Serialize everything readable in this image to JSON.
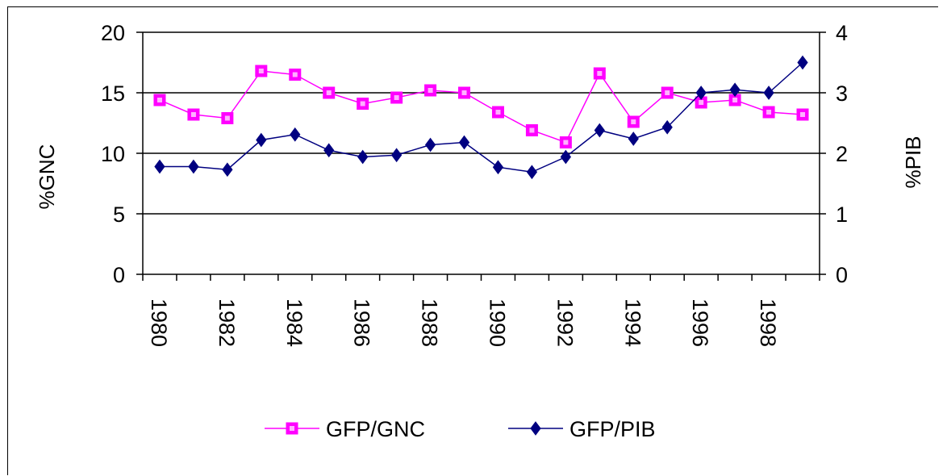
{
  "chart_data": {
    "type": "line",
    "x": [
      1980,
      1981,
      1982,
      1983,
      1984,
      1985,
      1986,
      1987,
      1988,
      1989,
      1990,
      1991,
      1992,
      1993,
      1994,
      1995,
      1996,
      1997,
      1998,
      1999
    ],
    "x_tick_labels": [
      "1980",
      "1982",
      "1984",
      "1986",
      "1988",
      "1990",
      "1992",
      "1994",
      "1996",
      "1998"
    ],
    "ylabel": "%GNC",
    "ylabel_right": "%PIB",
    "ylim": [
      0,
      20
    ],
    "ylim_right": [
      0,
      4
    ],
    "y_ticks": [
      "0",
      "5",
      "10",
      "15",
      "20"
    ],
    "y_ticks_right": [
      "0",
      "1",
      "2",
      "3",
      "4"
    ],
    "grid": true,
    "legend_position": "bottom",
    "series": [
      {
        "name": "GFP/GNC",
        "axis": "left",
        "color": "#ff00ff",
        "marker": "square",
        "values": [
          14.4,
          13.2,
          12.9,
          16.8,
          16.5,
          15.0,
          14.1,
          14.6,
          15.2,
          15.0,
          13.4,
          11.9,
          10.9,
          16.6,
          12.6,
          15.0,
          14.2,
          14.4,
          13.4,
          13.2
        ]
      },
      {
        "name": "GFP/PIB",
        "axis": "right",
        "color": "#000080",
        "marker": "diamond",
        "values": [
          1.78,
          1.78,
          1.73,
          2.22,
          2.31,
          2.05,
          1.94,
          1.97,
          2.14,
          2.18,
          1.77,
          1.69,
          1.94,
          2.38,
          2.24,
          2.43,
          3.0,
          3.05,
          3.0,
          3.5
        ]
      }
    ]
  }
}
